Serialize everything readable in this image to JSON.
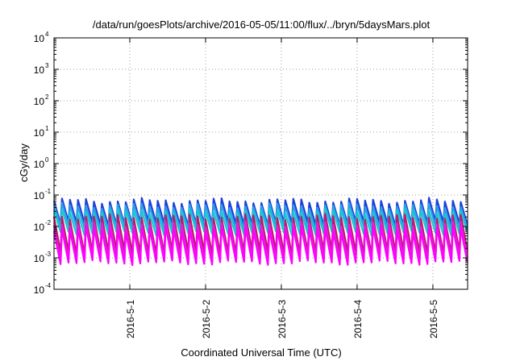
{
  "chart_data": {
    "type": "line",
    "title": "/data/run/goesPlots/archive/2016-05-05/11:00/flux/../bryn/5daysMars.plot",
    "xlabel": "Coordinated Universal Time (UTC)",
    "ylabel": "cGy/day",
    "yscale": "log",
    "ylim": [
      0.0001,
      10000
    ],
    "y_ticks": [
      {
        "base": "10",
        "exp": "4",
        "value": 10000
      },
      {
        "base": "10",
        "exp": "3",
        "value": 1000
      },
      {
        "base": "10",
        "exp": "2",
        "value": 100
      },
      {
        "base": "10",
        "exp": "1",
        "value": 10
      },
      {
        "base": "10",
        "exp": "0",
        "value": 1
      },
      {
        "base": "10",
        "exp": "-1",
        "value": 0.1
      },
      {
        "base": "10",
        "exp": "-2",
        "value": 0.01
      },
      {
        "base": "10",
        "exp": "-3",
        "value": 0.001
      },
      {
        "base": "10",
        "exp": "-4",
        "value": 0.0001
      }
    ],
    "xlim": [
      "2016-04-30T00:00",
      "2016-05-05T11:00"
    ],
    "x_ticks": [
      "2016-5-1",
      "2016-5-2",
      "2016-5-3",
      "2016-5-4",
      "2016-5-5"
    ],
    "grid": true,
    "cycles_per_day": 9.5,
    "series": [
      {
        "color": "#1f3fd8",
        "peak": 0.065,
        "trough": 0.012
      },
      {
        "color": "#2aa0e8",
        "peak": 0.045,
        "trough": 0.009
      },
      {
        "color": "#18c8d0",
        "peak": 0.03,
        "trough": 0.006
      },
      {
        "color": "#c0186a",
        "peak": 0.02,
        "trough": 0.0015
      },
      {
        "color": "#e020e0",
        "peak": 0.012,
        "trough": 0.0009
      },
      {
        "color": "#ff00ff",
        "peak": 0.008,
        "trough": 0.0007
      }
    ]
  }
}
